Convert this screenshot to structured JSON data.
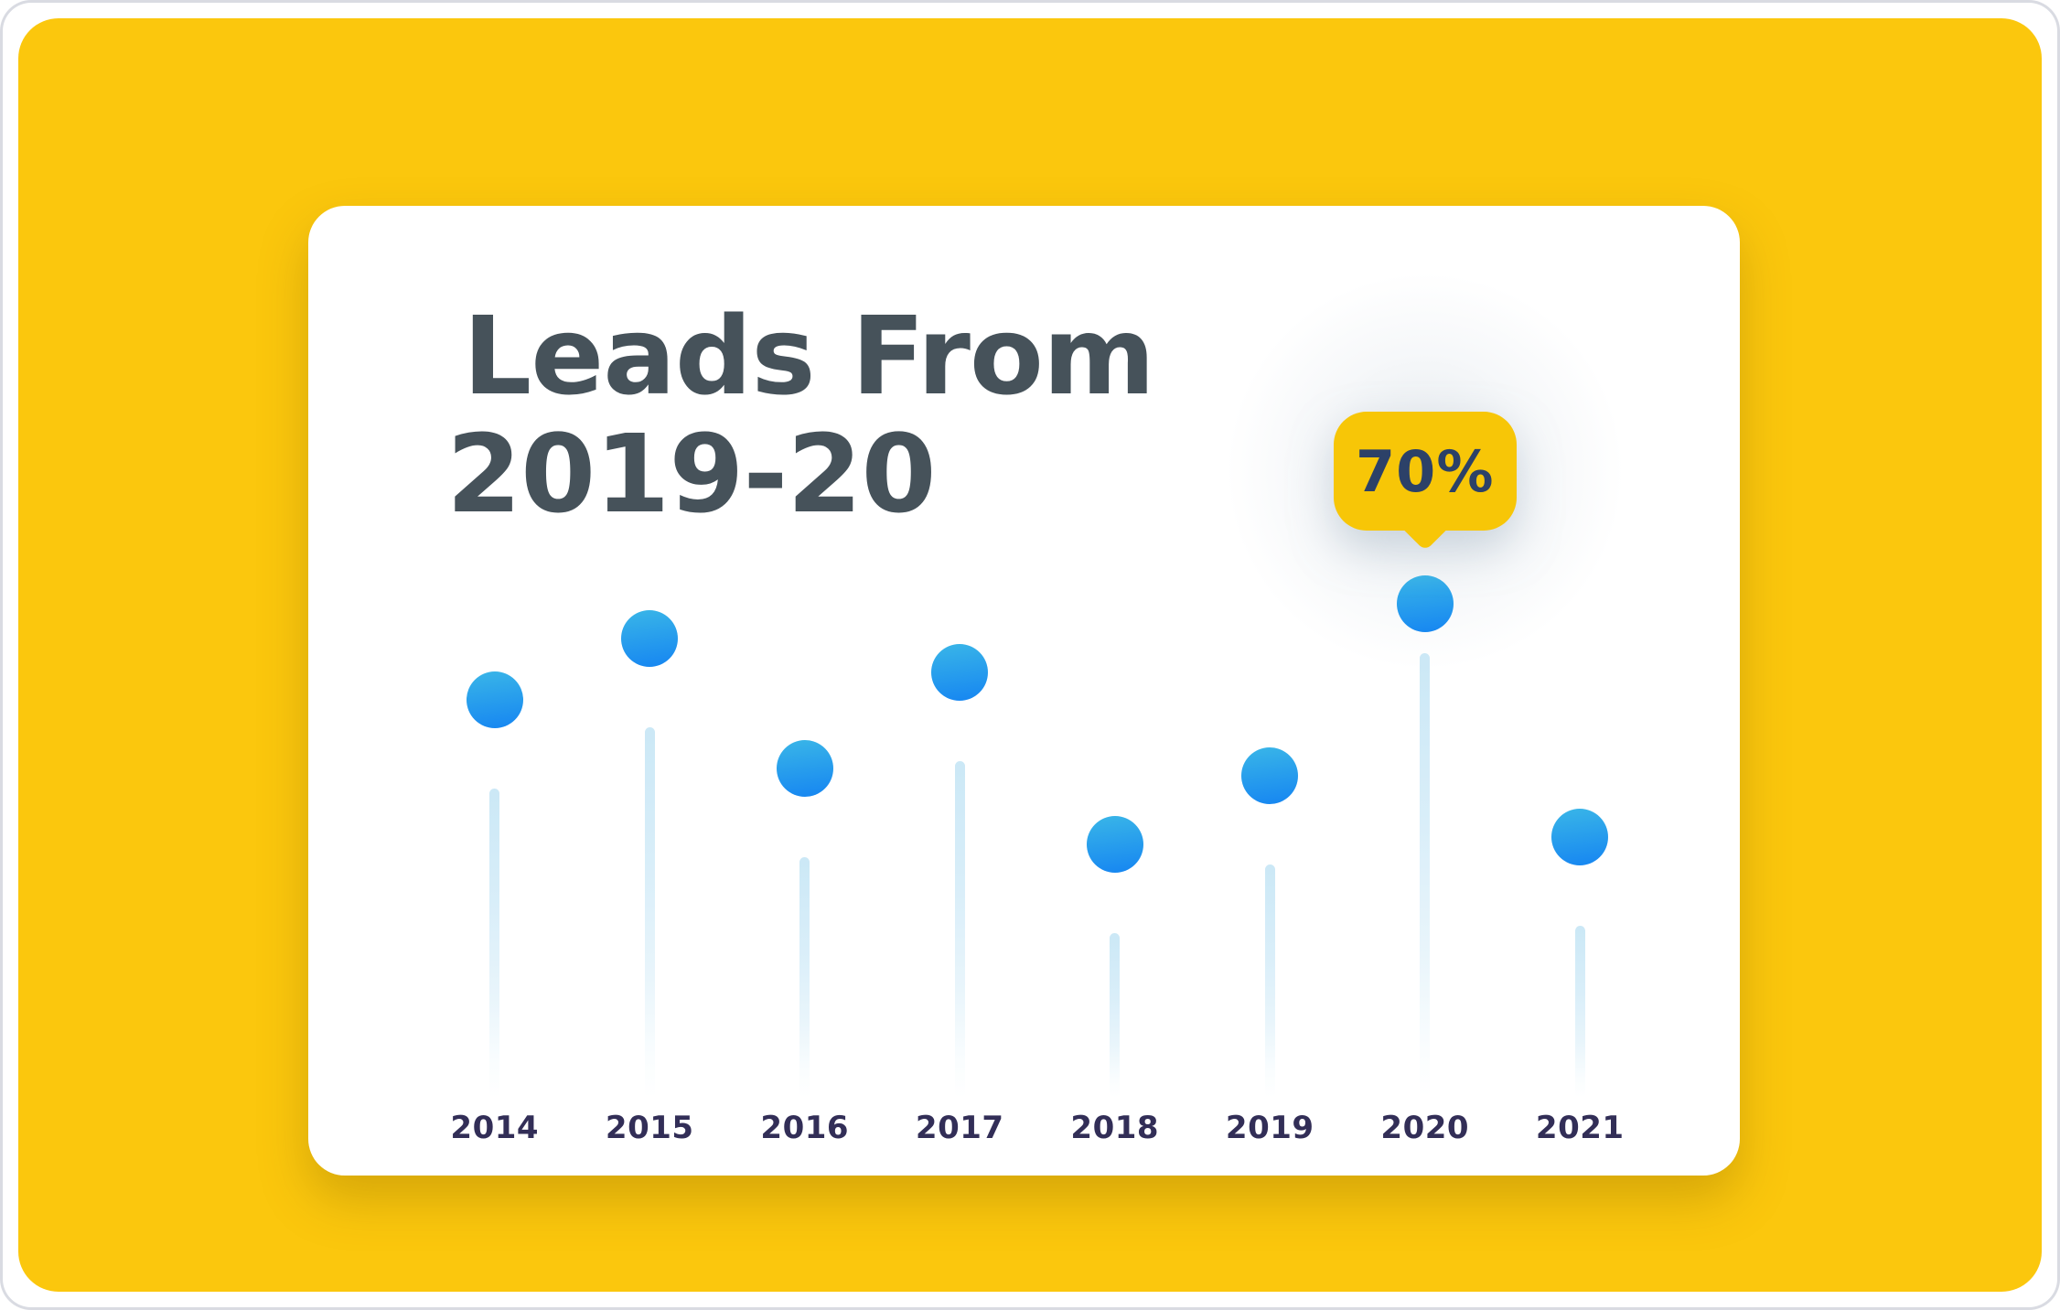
{
  "title": {
    "line1": "Leads From",
    "line2": "2019-20"
  },
  "callout": {
    "label": "70%"
  },
  "chart_data": {
    "type": "bar",
    "variant": "lollipop",
    "title": "Leads From 2019-20",
    "categories": [
      "2014",
      "2015",
      "2016",
      "2017",
      "2018",
      "2019",
      "2020",
      "2021"
    ],
    "values": [
      56,
      65,
      46,
      60,
      35,
      45,
      70,
      36
    ],
    "unit": "%",
    "xlabel": "",
    "ylabel": "",
    "ylim": [
      0,
      100
    ],
    "grid": false,
    "legend": false,
    "highlight": {
      "category": "2020",
      "value": 70,
      "label": "70%"
    }
  },
  "colors": {
    "background_yellow": "#FBC70D",
    "card_background": "#FFFFFF",
    "title_text": "#46525A",
    "axis_label_text": "#322E57",
    "callout_background": "#F7C607",
    "callout_text": "#2C4168",
    "dot_gradient_top": "#38B4E8",
    "dot_gradient_bottom": "#1787F1",
    "stem_light_blue": "#CDE9F6"
  }
}
